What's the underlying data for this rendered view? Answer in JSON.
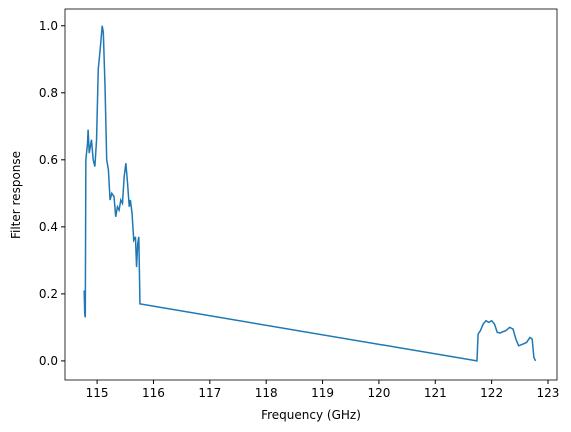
{
  "chart_data": {
    "type": "line",
    "x_label": "Frequency (GHz)",
    "y_label": "Filter response",
    "x": [
      114.77,
      114.78,
      114.79,
      114.8,
      114.83,
      114.84,
      114.86,
      114.9,
      114.93,
      114.96,
      114.99,
      115.02,
      115.06,
      115.09,
      115.11,
      115.14,
      115.17,
      115.2,
      115.23,
      115.26,
      115.3,
      115.33,
      115.36,
      115.39,
      115.42,
      115.45,
      115.48,
      115.51,
      115.54,
      115.57,
      115.59,
      115.62,
      115.65,
      115.68,
      115.7,
      115.72,
      115.74,
      115.76,
      121.74,
      121.76,
      121.8,
      121.85,
      121.9,
      121.95,
      122.0,
      122.05,
      122.1,
      122.15,
      122.2,
      122.25,
      122.32,
      122.38,
      122.43,
      122.48,
      122.55,
      122.62,
      122.68,
      122.72,
      122.75,
      122.78
    ],
    "series": [
      {
        "name": "Filter response",
        "color": "#1f77b4",
        "values": [
          0.21,
          0.14,
          0.13,
          0.6,
          0.65,
          0.69,
          0.62,
          0.66,
          0.6,
          0.58,
          0.66,
          0.87,
          0.94,
          1.0,
          0.98,
          0.82,
          0.6,
          0.57,
          0.48,
          0.5,
          0.49,
          0.43,
          0.46,
          0.45,
          0.48,
          0.47,
          0.55,
          0.59,
          0.53,
          0.46,
          0.48,
          0.44,
          0.36,
          0.37,
          0.28,
          0.35,
          0.37,
          0.17,
          0.0,
          0.08,
          0.09,
          0.11,
          0.12,
          0.115,
          0.12,
          0.11,
          0.085,
          0.083,
          0.087,
          0.09,
          0.1,
          0.095,
          0.065,
          0.045,
          0.05,
          0.055,
          0.07,
          0.065,
          0.01,
          0.0
        ]
      }
    ],
    "xlim": [
      114.43,
      123.16
    ],
    "ylim": [
      -0.057,
      1.05
    ],
    "xticks": [
      115,
      116,
      117,
      118,
      119,
      120,
      121,
      122,
      123
    ],
    "yticks": [
      {
        "value": 0,
        "label": "0.0"
      },
      {
        "value": 0.2,
        "label": "0.2"
      },
      {
        "value": 0.4,
        "label": "0.4"
      },
      {
        "value": 0.6,
        "label": "0.6"
      },
      {
        "value": 0.8,
        "label": "0.8"
      },
      {
        "value": 1,
        "label": "1.0"
      }
    ]
  }
}
